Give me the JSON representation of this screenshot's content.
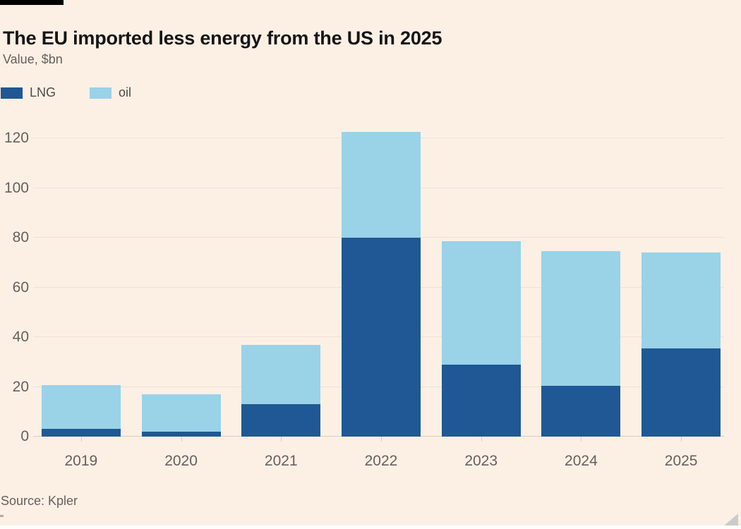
{
  "page": {
    "background_color": "#fcf0e5",
    "accent_tag_color": "#000000",
    "title": "The EU imported less energy from the US in 2025",
    "subtitle": "Value, $bn",
    "source": "Source: Kpler"
  },
  "chart_data": {
    "type": "bar",
    "stacked": true,
    "title": "The EU imported less energy from the US in 2025",
    "ylabel": "Value, $bn",
    "source": "Source: Kpler",
    "categories": [
      "2019",
      "2020",
      "2021",
      "2022",
      "2023",
      "2024",
      "2025"
    ],
    "series": [
      {
        "name": "LNG",
        "color": "#1f5894",
        "values": [
          3,
          2,
          13,
          80,
          29,
          20.5,
          35.5
        ]
      },
      {
        "name": "oil",
        "color": "#9ad2e8",
        "values": [
          17.8,
          15,
          24,
          42.5,
          49.5,
          54,
          38.5
        ]
      }
    ],
    "stack_totals": [
      20.8,
      17,
      37,
      122.5,
      78.5,
      74.5,
      74
    ],
    "yticks": [
      0,
      20,
      40,
      60,
      80,
      100,
      120
    ],
    "ylim": [
      0,
      127.4
    ],
    "grid": "horizontal",
    "legend_position": "top-left",
    "colors": {
      "background": "#fcf0e5",
      "gridline": "#eee0d4",
      "axis_text": "#66605c",
      "title_text": "#151515"
    }
  }
}
